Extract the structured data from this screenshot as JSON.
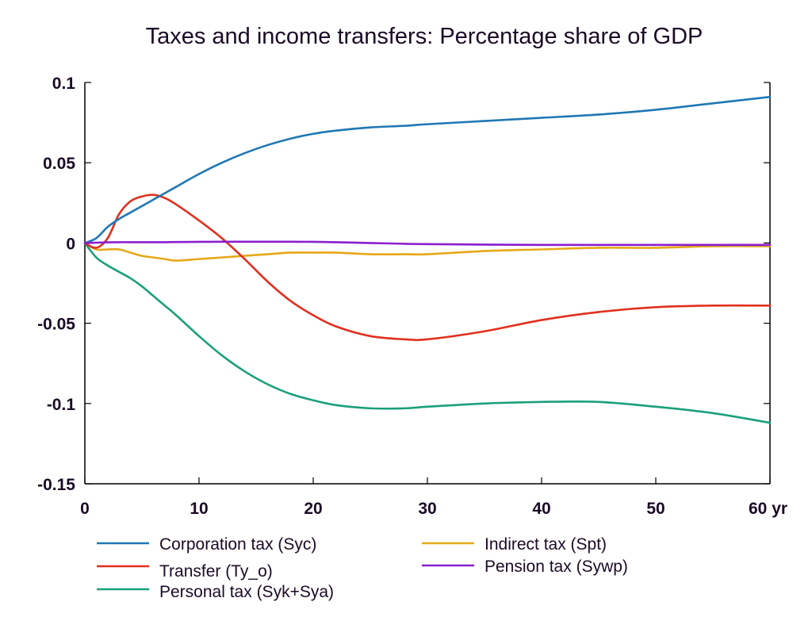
{
  "chart_data": {
    "type": "line",
    "title": "Taxes and income transfers: Percentage share of GDP",
    "xlabel": "",
    "ylabel": "",
    "x_unit_label": "yr",
    "xlim": [
      0,
      60
    ],
    "ylim": [
      -0.15,
      0.1
    ],
    "xticks": [
      0,
      10,
      20,
      30,
      40,
      50,
      60
    ],
    "xtick_labels": [
      "0",
      "10",
      "20",
      "30",
      "40",
      "50",
      "60 yr"
    ],
    "yticks": [
      0.1,
      0.05,
      0,
      -0.05,
      -0.1,
      -0.15
    ],
    "ytick_labels": [
      "0.1",
      "0.05",
      "0",
      "-0.05",
      "-0.1",
      "-0.15"
    ],
    "grid": false,
    "legend_placement": "bottom",
    "x": [
      0,
      1,
      2,
      3,
      4,
      5,
      6,
      7,
      8,
      10,
      12,
      14,
      16,
      18,
      20,
      22,
      25,
      28,
      30,
      35,
      40,
      45,
      50,
      55,
      60
    ],
    "series": [
      {
        "name": "Corporation tax (Syc)",
        "color": "#1f78b4",
        "values": [
          0,
          0.003,
          0.01,
          0.015,
          0.019,
          0.023,
          0.027,
          0.031,
          0.035,
          0.043,
          0.05,
          0.056,
          0.061,
          0.065,
          0.068,
          0.07,
          0.072,
          0.073,
          0.074,
          0.076,
          0.078,
          0.08,
          0.083,
          0.087,
          0.091
        ]
      },
      {
        "name": "Transfer (Ty_o)",
        "color": "#e0301e",
        "values": [
          0,
          -0.003,
          0.003,
          0.018,
          0.026,
          0.029,
          0.03,
          0.028,
          0.024,
          0.014,
          0.003,
          -0.01,
          -0.024,
          -0.036,
          -0.045,
          -0.052,
          -0.058,
          -0.06,
          -0.06,
          -0.055,
          -0.048,
          -0.043,
          -0.04,
          -0.039,
          -0.039
        ]
      },
      {
        "name": "Personal tax (Syk+Sya)",
        "color": "#1aa07a",
        "values": [
          0,
          -0.009,
          -0.014,
          -0.018,
          -0.022,
          -0.027,
          -0.033,
          -0.039,
          -0.045,
          -0.058,
          -0.07,
          -0.08,
          -0.088,
          -0.094,
          -0.098,
          -0.101,
          -0.103,
          -0.103,
          -0.102,
          -0.1,
          -0.099,
          -0.099,
          -0.102,
          -0.106,
          -0.112
        ]
      },
      {
        "name": "Indirect tax (Spt)",
        "color": "#e6a817",
        "values": [
          0,
          -0.004,
          -0.004,
          -0.004,
          -0.006,
          -0.008,
          -0.009,
          -0.01,
          -0.011,
          -0.01,
          -0.009,
          -0.008,
          -0.007,
          -0.006,
          -0.006,
          -0.006,
          -0.007,
          -0.007,
          -0.007,
          -0.005,
          -0.004,
          -0.003,
          -0.003,
          -0.002,
          -0.002
        ]
      },
      {
        "name": "Pension tax (Sywp)",
        "color": "#8a1ecf",
        "values": [
          0,
          0.0002,
          0.0004,
          0.0005,
          0.0005,
          0.0005,
          0.0005,
          0.0005,
          0.0006,
          0.0007,
          0.0008,
          0.0008,
          0.0008,
          0.0008,
          0.0007,
          0.0005,
          0.0,
          -0.0005,
          -0.0007,
          -0.001,
          -0.0012,
          -0.0012,
          -0.0012,
          -0.0012,
          -0.0012
        ]
      }
    ]
  }
}
